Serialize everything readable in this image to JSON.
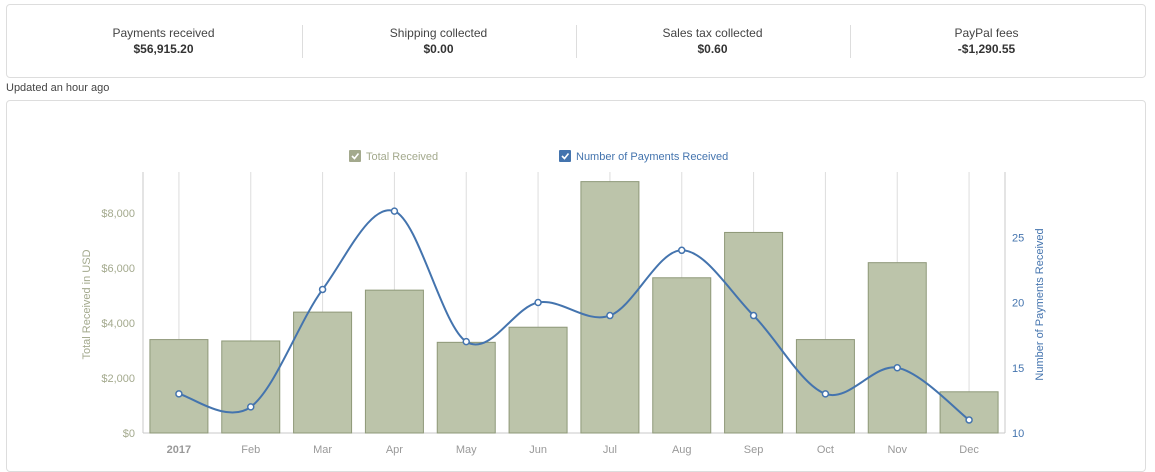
{
  "summary": {
    "stats": [
      {
        "label": "Payments received",
        "value": "$56,915.20"
      },
      {
        "label": "Shipping collected",
        "value": "$0.00"
      },
      {
        "label": "Sales tax collected",
        "value": "$0.60"
      },
      {
        "label": "PayPal fees",
        "value": "-$1,290.55"
      }
    ],
    "updated": "Updated an hour ago"
  },
  "colors": {
    "bar_fill": "#bcc4aa",
    "bar_stroke": "#8e9878",
    "line": "#4474ae",
    "left_axis_text": "#a3a98d",
    "right_axis_text": "#4474ae",
    "grid": "#dddddd"
  },
  "chart_data": {
    "type": "bar",
    "categories": [
      "2017",
      "Feb",
      "Mar",
      "Apr",
      "May",
      "Jun",
      "Jul",
      "Aug",
      "Sep",
      "Oct",
      "Nov",
      "Dec"
    ],
    "series": [
      {
        "name": "Total Received",
        "type": "bar",
        "axis": "left",
        "values": [
          3400,
          3350,
          4400,
          5200,
          3300,
          3850,
          9150,
          5650,
          7300,
          3400,
          6200,
          1500
        ]
      },
      {
        "name": "Number of Payments Received",
        "type": "line",
        "axis": "right",
        "smooth": true,
        "values": [
          13,
          12,
          21,
          27,
          17,
          20,
          19,
          24,
          19,
          13,
          15,
          11
        ]
      }
    ],
    "ylabel": "Total Received in USD",
    "y2label": "Number of Payments Received",
    "ylim": [
      0,
      9500
    ],
    "yticks": [
      0,
      2000,
      4000,
      6000,
      8000
    ],
    "ytick_labels": [
      "$0",
      "$2,000",
      "$4,000",
      "$6,000",
      "$8,000"
    ],
    "y2lim": [
      10,
      30
    ],
    "y2ticks": [
      10,
      15,
      20,
      25
    ],
    "y2tick_labels": [
      "10",
      "15",
      "20",
      "25"
    ],
    "legend_placement": "top-center",
    "grid": "vertical"
  }
}
